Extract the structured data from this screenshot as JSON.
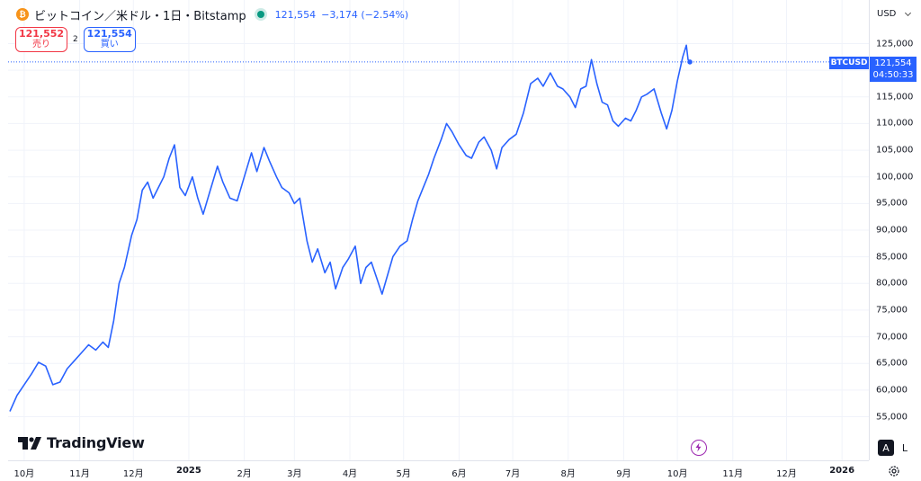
{
  "header": {
    "title": "ビットコイン／米ドル・1日・Bitstamp",
    "coin_icon": "bitcoin-icon",
    "last_price": "121,554",
    "change": "−3,174 (−2.54%)"
  },
  "trade": {
    "sell_price": "121,552",
    "sell_label": "売り",
    "spread": "2",
    "buy_price": "121,554",
    "buy_label": "買い"
  },
  "price_axis": {
    "currency": "USD",
    "ticks": [
      "125,000",
      "120,000",
      "115,000",
      "110,000",
      "105,000",
      "100,000",
      "95,000",
      "90,000",
      "85,000",
      "80,000",
      "75,000",
      "70,000",
      "65,000",
      "60,000",
      "55,000"
    ],
    "symbol_label": "BTCUSD",
    "current_price": "121,554",
    "countdown": "04:50:33"
  },
  "time_axis": {
    "labels": [
      "10月",
      "11月",
      "12月",
      "2025",
      "2月",
      "3月",
      "4月",
      "5月",
      "6月",
      "7月",
      "8月",
      "9月",
      "10月",
      "11月",
      "12月",
      "2026"
    ]
  },
  "brand": {
    "name": "TradingView",
    "icon": "tradingview-logo-icon"
  },
  "controls": {
    "auto_label": "A",
    "log_label": "L",
    "settings_icon": "gear-icon",
    "event_icon": "lightning-icon"
  },
  "colors": {
    "line": "#2962ff",
    "accent": "#2962ff",
    "sell": "#f23645",
    "status": "#089981",
    "event": "#9c27b0"
  },
  "chart_data": {
    "type": "line",
    "series": [
      {
        "name": "BTCUSD",
        "points": [
          [
            "2024-09-23",
            56000
          ],
          [
            "2024-09-27",
            59000
          ],
          [
            "2024-10-01",
            61000
          ],
          [
            "2024-10-05",
            63000
          ],
          [
            "2024-10-09",
            65200
          ],
          [
            "2024-10-13",
            64500
          ],
          [
            "2024-10-17",
            61000
          ],
          [
            "2024-10-21",
            61500
          ],
          [
            "2024-10-25",
            64000
          ],
          [
            "2024-10-29",
            65500
          ],
          [
            "2024-11-02",
            67000
          ],
          [
            "2024-11-06",
            68500
          ],
          [
            "2024-11-10",
            67500
          ],
          [
            "2024-11-14",
            69000
          ],
          [
            "2024-11-17",
            68000
          ],
          [
            "2024-11-20",
            73000
          ],
          [
            "2024-11-23",
            80000
          ],
          [
            "2024-11-26",
            83000
          ],
          [
            "2024-11-30",
            89000
          ],
          [
            "2024-12-03",
            92000
          ],
          [
            "2024-12-06",
            97500
          ],
          [
            "2024-12-09",
            99000
          ],
          [
            "2024-12-12",
            96000
          ],
          [
            "2024-12-15",
            98000
          ],
          [
            "2024-12-18",
            100000
          ],
          [
            "2024-12-21",
            103500
          ],
          [
            "2024-12-24",
            106000
          ],
          [
            "2024-12-27",
            98000
          ],
          [
            "2024-12-30",
            96500
          ],
          [
            "2025-01-03",
            100000
          ],
          [
            "2025-01-06",
            96000
          ],
          [
            "2025-01-09",
            93000
          ],
          [
            "2025-01-13",
            97500
          ],
          [
            "2025-01-17",
            102000
          ],
          [
            "2025-01-20",
            99000
          ],
          [
            "2025-01-24",
            96000
          ],
          [
            "2025-01-28",
            95500
          ],
          [
            "2025-02-01",
            100000
          ],
          [
            "2025-02-05",
            104500
          ],
          [
            "2025-02-08",
            101000
          ],
          [
            "2025-02-12",
            105500
          ],
          [
            "2025-02-15",
            103000
          ],
          [
            "2025-02-19",
            100000
          ],
          [
            "2025-02-22",
            98000
          ],
          [
            "2025-02-26",
            97000
          ],
          [
            "2025-03-01",
            95000
          ],
          [
            "2025-03-04",
            96000
          ],
          [
            "2025-03-08",
            88000
          ],
          [
            "2025-03-11",
            84000
          ],
          [
            "2025-03-14",
            86500
          ],
          [
            "2025-03-18",
            82000
          ],
          [
            "2025-03-21",
            84000
          ],
          [
            "2025-03-24",
            79000
          ],
          [
            "2025-03-28",
            83000
          ],
          [
            "2025-03-31",
            84500
          ],
          [
            "2025-04-04",
            87000
          ],
          [
            "2025-04-07",
            80000
          ],
          [
            "2025-04-10",
            83000
          ],
          [
            "2025-04-13",
            84000
          ],
          [
            "2025-04-16",
            81000
          ],
          [
            "2025-04-19",
            78000
          ],
          [
            "2025-04-22",
            81500
          ],
          [
            "2025-04-25",
            85000
          ],
          [
            "2025-04-29",
            87000
          ],
          [
            "2025-05-03",
            88000
          ],
          [
            "2025-05-06",
            92000
          ],
          [
            "2025-05-09",
            95500
          ],
          [
            "2025-05-12",
            98000
          ],
          [
            "2025-05-15",
            100500
          ],
          [
            "2025-05-18",
            103500
          ],
          [
            "2025-05-22",
            107000
          ],
          [
            "2025-05-25",
            110000
          ],
          [
            "2025-05-28",
            108500
          ],
          [
            "2025-06-01",
            106000
          ],
          [
            "2025-06-05",
            104000
          ],
          [
            "2025-06-08",
            103500
          ],
          [
            "2025-06-12",
            106500
          ],
          [
            "2025-06-15",
            107500
          ],
          [
            "2025-06-19",
            105000
          ],
          [
            "2025-06-22",
            101500
          ],
          [
            "2025-06-25",
            105500
          ],
          [
            "2025-06-29",
            107000
          ],
          [
            "2025-07-03",
            108000
          ],
          [
            "2025-07-07",
            112000
          ],
          [
            "2025-07-11",
            117500
          ],
          [
            "2025-07-15",
            118500
          ],
          [
            "2025-07-18",
            117000
          ],
          [
            "2025-07-22",
            119500
          ],
          [
            "2025-07-26",
            117000
          ],
          [
            "2025-07-29",
            116500
          ],
          [
            "2025-08-02",
            115000
          ],
          [
            "2025-08-05",
            113000
          ],
          [
            "2025-08-08",
            116500
          ],
          [
            "2025-08-11",
            117000
          ],
          [
            "2025-08-14",
            122000
          ],
          [
            "2025-08-17",
            117500
          ],
          [
            "2025-08-20",
            114000
          ],
          [
            "2025-08-23",
            113500
          ],
          [
            "2025-08-26",
            110500
          ],
          [
            "2025-08-29",
            109500
          ],
          [
            "2025-09-02",
            111000
          ],
          [
            "2025-09-05",
            110500
          ],
          [
            "2025-09-08",
            112500
          ],
          [
            "2025-09-11",
            115000
          ],
          [
            "2025-09-14",
            115500
          ],
          [
            "2025-09-18",
            116500
          ],
          [
            "2025-09-22",
            112000
          ],
          [
            "2025-09-25",
            109000
          ],
          [
            "2025-09-28",
            112500
          ],
          [
            "2025-10-01",
            118000
          ],
          [
            "2025-10-04",
            122500
          ],
          [
            "2025-10-06",
            124700
          ],
          [
            "2025-10-07",
            122000
          ],
          [
            "2025-10-08",
            121554
          ]
        ]
      }
    ],
    "ylim": [
      53000,
      127000
    ],
    "xlim": [
      "2024-09-22",
      "2026-01-16"
    ],
    "grid": true,
    "current_value": 121554
  }
}
